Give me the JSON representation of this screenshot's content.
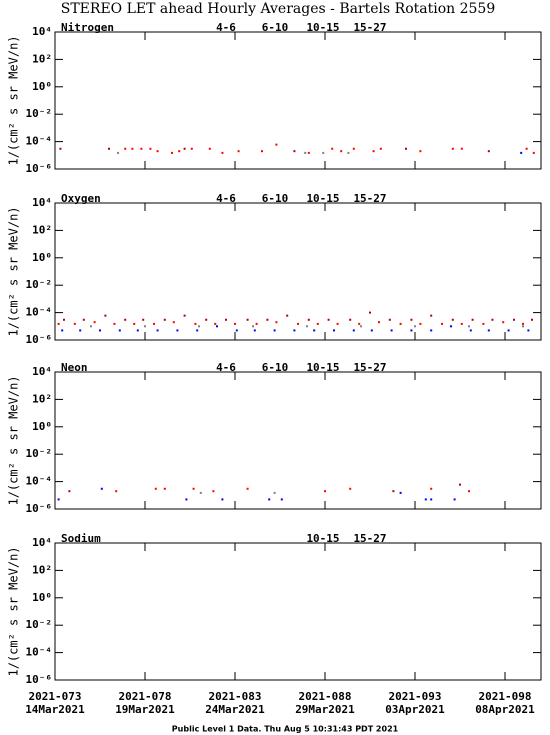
{
  "title": "STEREO LET ahead Hourly Averages - Bartels Rotation 2559",
  "footer": "Public Level 1 Data. Thu Aug  5 10:31:43 PDT 2021",
  "chart_data": [
    {
      "type": "scatter",
      "title": "Nitrogen",
      "ylabel": "1/(cm² s sr MeV/n)",
      "log_y": true,
      "xlim": [
        73,
        100
      ],
      "xticks": [
        73,
        78,
        83,
        88,
        93,
        98
      ],
      "ylim": [
        1e-06,
        10000
      ],
      "yticks": [
        {
          "value": 10000,
          "label": "10⁴"
        },
        {
          "value": 100,
          "label": "10²"
        },
        {
          "value": 1,
          "label": "10⁰"
        },
        {
          "value": 0.01,
          "label": "10⁻²"
        },
        {
          "value": 0.0001,
          "label": "10⁻⁴"
        },
        {
          "value": 1e-06,
          "label": "10⁻⁶"
        }
      ],
      "series": [
        {
          "name": "4-6",
          "color": "#b00000",
          "x": [
            73.3,
            76.0,
            80.2,
            86.3,
            92.5,
            97.1
          ],
          "values": [
            3e-05,
            3e-05,
            3e-05,
            2e-05,
            3e-05,
            2e-05
          ]
        },
        {
          "name": "6-10",
          "color": "#ff0000",
          "x": [
            76.9,
            77.3,
            77.8,
            78.3,
            78.7,
            79.5,
            79.9,
            80.6,
            81.6,
            82.3,
            83.2,
            84.5,
            85.3,
            87.1,
            88.4,
            88.9,
            89.6,
            90.7,
            91.1,
            93.3,
            95.1,
            95.6,
            99.2,
            99.6
          ],
          "values": [
            3e-05,
            3e-05,
            3e-05,
            3e-05,
            2e-05,
            1.5e-05,
            2e-05,
            3e-05,
            3e-05,
            1.5e-05,
            2e-05,
            2e-05,
            6e-05,
            1.5e-05,
            3e-05,
            2e-05,
            3e-05,
            2e-05,
            3e-05,
            2e-05,
            3e-05,
            3e-05,
            3e-05,
            1.5e-05
          ]
        },
        {
          "name": "10-15",
          "color": "#808080",
          "x": [
            76.5,
            86.9,
            87.9,
            89.3
          ],
          "values": [
            1.5e-05,
            1.5e-05,
            1.5e-05,
            1.5e-05
          ]
        },
        {
          "name": "15-27",
          "color": "#0000ff",
          "x": [
            98.9
          ],
          "values": [
            1.5e-05
          ]
        }
      ]
    },
    {
      "type": "scatter",
      "title": "Oxygen",
      "ylabel": "1/(cm² s sr MeV/n)",
      "log_y": true,
      "xlim": [
        73,
        100
      ],
      "xticks": [
        73,
        78,
        83,
        88,
        93,
        98
      ],
      "ylim": [
        1e-06,
        10000
      ],
      "yticks": [
        {
          "value": 10000,
          "label": "10⁴"
        },
        {
          "value": 100,
          "label": "10²"
        },
        {
          "value": 1,
          "label": "10⁰"
        },
        {
          "value": 0.01,
          "label": "10⁻²"
        },
        {
          "value": 0.0001,
          "label": "10⁻⁴"
        },
        {
          "value": 1e-06,
          "label": "10⁻⁶"
        }
      ],
      "series": [
        {
          "name": "4-6",
          "color": "#b00000",
          "x": [
            73.5,
            74.6,
            75.8,
            76.9,
            77.9,
            79.1,
            80.2,
            81.4,
            82.5,
            83.7,
            84.8,
            85.9,
            87.1,
            88.2,
            89.4,
            90.5,
            91.6,
            92.8,
            93.9,
            95.1,
            96.2,
            97.3,
            98.5,
            99.5
          ],
          "values": [
            3e-05,
            3e-05,
            6e-05,
            3e-05,
            3e-05,
            3e-05,
            6e-05,
            3e-05,
            3e-05,
            3e-05,
            3e-05,
            6e-05,
            3e-05,
            3e-05,
            3e-05,
            0.0001,
            3e-05,
            3e-05,
            6e-05,
            3e-05,
            3e-05,
            3e-05,
            3e-05,
            3e-05
          ]
        },
        {
          "name": "6-10",
          "color": "#ff0000",
          "x": [
            73.2,
            74.1,
            75.2,
            76.3,
            77.4,
            78.5,
            79.6,
            80.8,
            81.9,
            83.0,
            84.2,
            85.3,
            86.5,
            87.6,
            88.7,
            89.9,
            91.0,
            92.2,
            93.3,
            94.5,
            95.6,
            96.8,
            97.9,
            99.0
          ],
          "values": [
            1.5e-05,
            1.5e-05,
            2e-05,
            1.5e-05,
            1.5e-05,
            1.5e-05,
            2e-05,
            1.5e-05,
            1.5e-05,
            1.5e-05,
            1.5e-05,
            2e-05,
            1.5e-05,
            1.5e-05,
            1.5e-05,
            1.5e-05,
            2e-05,
            1.5e-05,
            1.5e-05,
            1.5e-05,
            1.5e-05,
            1.5e-05,
            2e-05,
            1.5e-05
          ]
        },
        {
          "name": "10-15",
          "color": "#808080",
          "x": [
            75.0,
            78.0,
            81.0,
            84.0,
            87.0,
            90.0,
            93.0,
            96.0,
            99.0
          ],
          "values": [
            1e-05,
            1e-05,
            1e-05,
            1e-05,
            1e-05,
            1e-05,
            1e-05,
            1e-05,
            1e-05
          ]
        },
        {
          "name": "15-27",
          "color": "#0000ff",
          "x": [
            73.4,
            74.4,
            75.5,
            76.6,
            77.6,
            78.7,
            79.8,
            80.9,
            82.0,
            83.1,
            84.1,
            85.2,
            86.3,
            87.4,
            88.5,
            89.6,
            90.6,
            91.7,
            92.8,
            93.9,
            95.0,
            96.1,
            97.1,
            98.2,
            99.3
          ],
          "values": [
            5e-06,
            5e-06,
            5e-06,
            5e-06,
            5e-06,
            5e-06,
            5e-06,
            5e-06,
            1e-05,
            5e-06,
            5e-06,
            5e-06,
            5e-06,
            5e-06,
            5e-06,
            5e-06,
            5e-06,
            5e-06,
            5e-06,
            5e-06,
            1e-05,
            5e-06,
            5e-06,
            5e-06,
            5e-06
          ]
        }
      ]
    },
    {
      "type": "scatter",
      "title": "Neon",
      "ylabel": "1/(cm² s sr MeV/n)",
      "log_y": true,
      "xlim": [
        73,
        100
      ],
      "xticks": [
        73,
        78,
        83,
        88,
        93,
        98
      ],
      "ylim": [
        1e-06,
        10000
      ],
      "yticks": [
        {
          "value": 10000,
          "label": "10⁴"
        },
        {
          "value": 100,
          "label": "10²"
        },
        {
          "value": 1,
          "label": "10⁰"
        },
        {
          "value": 0.01,
          "label": "10⁻²"
        },
        {
          "value": 0.0001,
          "label": "10⁻⁴"
        },
        {
          "value": 1e-06,
          "label": "10⁻⁶"
        }
      ],
      "series": [
        {
          "name": "4-6",
          "color": "#b00000",
          "x": [
            73.8,
            91.8,
            95.5
          ],
          "values": [
            2e-05,
            2e-05,
            6e-05
          ]
        },
        {
          "name": "6-10",
          "color": "#ff0000",
          "x": [
            76.4,
            78.6,
            79.1,
            80.7,
            81.8,
            83.7,
            88.0,
            89.4,
            93.9,
            96.0
          ],
          "values": [
            2e-05,
            3e-05,
            3e-05,
            3e-05,
            2e-05,
            3e-05,
            2e-05,
            3e-05,
            3e-05,
            2e-05
          ]
        },
        {
          "name": "10-15",
          "color": "#808080",
          "x": [
            81.1,
            85.2
          ],
          "values": [
            1.5e-05,
            1.5e-05
          ]
        },
        {
          "name": "15-27",
          "color": "#0000ff",
          "x": [
            73.2,
            75.6,
            80.3,
            82.3,
            84.9,
            85.6,
            92.2,
            93.6,
            93.9,
            95.2
          ],
          "values": [
            5e-06,
            3e-05,
            5e-06,
            5e-06,
            5e-06,
            5e-06,
            1.5e-05,
            5e-06,
            5e-06,
            5e-06
          ]
        }
      ]
    },
    {
      "type": "scatter",
      "title": "Sodium",
      "ylabel": "1/(cm² s sr MeV/n)",
      "log_y": true,
      "xlim": [
        73,
        100
      ],
      "xticks": [
        {
          "value": 73,
          "label": "2021-073"
        },
        {
          "value": 78,
          "label": "2021-078"
        },
        {
          "value": 83,
          "label": "2021-083"
        },
        {
          "value": 88,
          "label": "2021-088"
        },
        {
          "value": 93,
          "label": "2021-093"
        },
        {
          "value": 98,
          "label": "2021-098"
        }
      ],
      "xtick_dates": [
        "14Mar2021",
        "19Mar2021",
        "24Mar2021",
        "29Mar2021",
        "03Apr2021",
        "08Apr2021"
      ],
      "ylim": [
        1e-06,
        10000
      ],
      "yticks": [
        {
          "value": 10000,
          "label": "10⁴"
        },
        {
          "value": 100,
          "label": "10²"
        },
        {
          "value": 1,
          "label": "10⁰"
        },
        {
          "value": 0.01,
          "label": "10⁻²"
        },
        {
          "value": 0.0001,
          "label": "10⁻⁴"
        },
        {
          "value": 1e-06,
          "label": "10⁻⁶"
        }
      ],
      "series": [
        {
          "name": "10-15",
          "color": "#808080",
          "x": [],
          "values": []
        },
        {
          "name": "15-27",
          "color": "#0000ff",
          "x": [],
          "values": []
        }
      ]
    }
  ]
}
